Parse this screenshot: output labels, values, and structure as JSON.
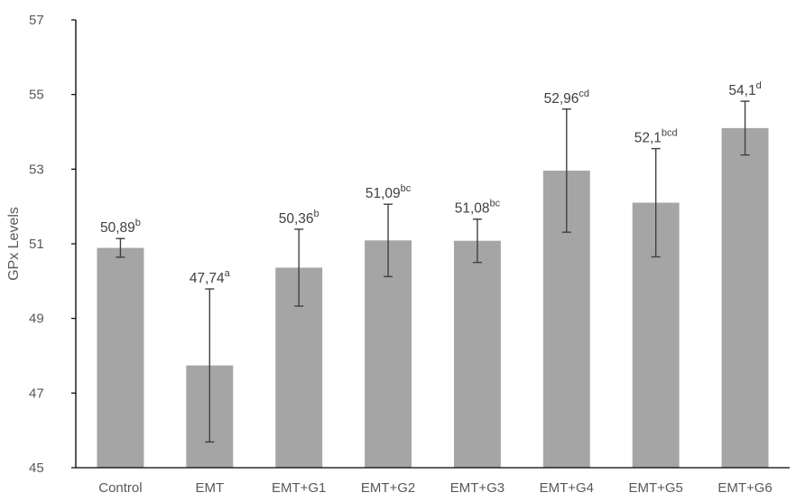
{
  "chart_data": {
    "type": "bar",
    "ylabel": "GPx Levels",
    "xlabel": "",
    "ylim": [
      45,
      57
    ],
    "yticks": [
      45,
      47,
      49,
      51,
      53,
      55,
      57
    ],
    "categories": [
      "Control",
      "EMT",
      "EMT+G1",
      "EMT+G2",
      "EMT+G3",
      "EMT+G4",
      "EMT+G5",
      "EMT+G6"
    ],
    "values": [
      50.89,
      47.74,
      50.36,
      51.09,
      51.08,
      52.96,
      52.1,
      54.1
    ],
    "error": [
      0.25,
      2.05,
      1.03,
      0.97,
      0.58,
      1.65,
      1.45,
      0.72
    ],
    "value_labels": [
      "50,89",
      "47,74",
      "50,36",
      "51,09",
      "51,08",
      "52,96",
      "52,1",
      "54,1"
    ],
    "significance": [
      "b",
      "a",
      "b",
      "bc",
      "bc",
      "cd",
      "bcd",
      "d"
    ],
    "bar_color": "#a5a5a5",
    "error_color": "#404040",
    "axis_color": "#000000",
    "grid": false,
    "legend": "none"
  }
}
